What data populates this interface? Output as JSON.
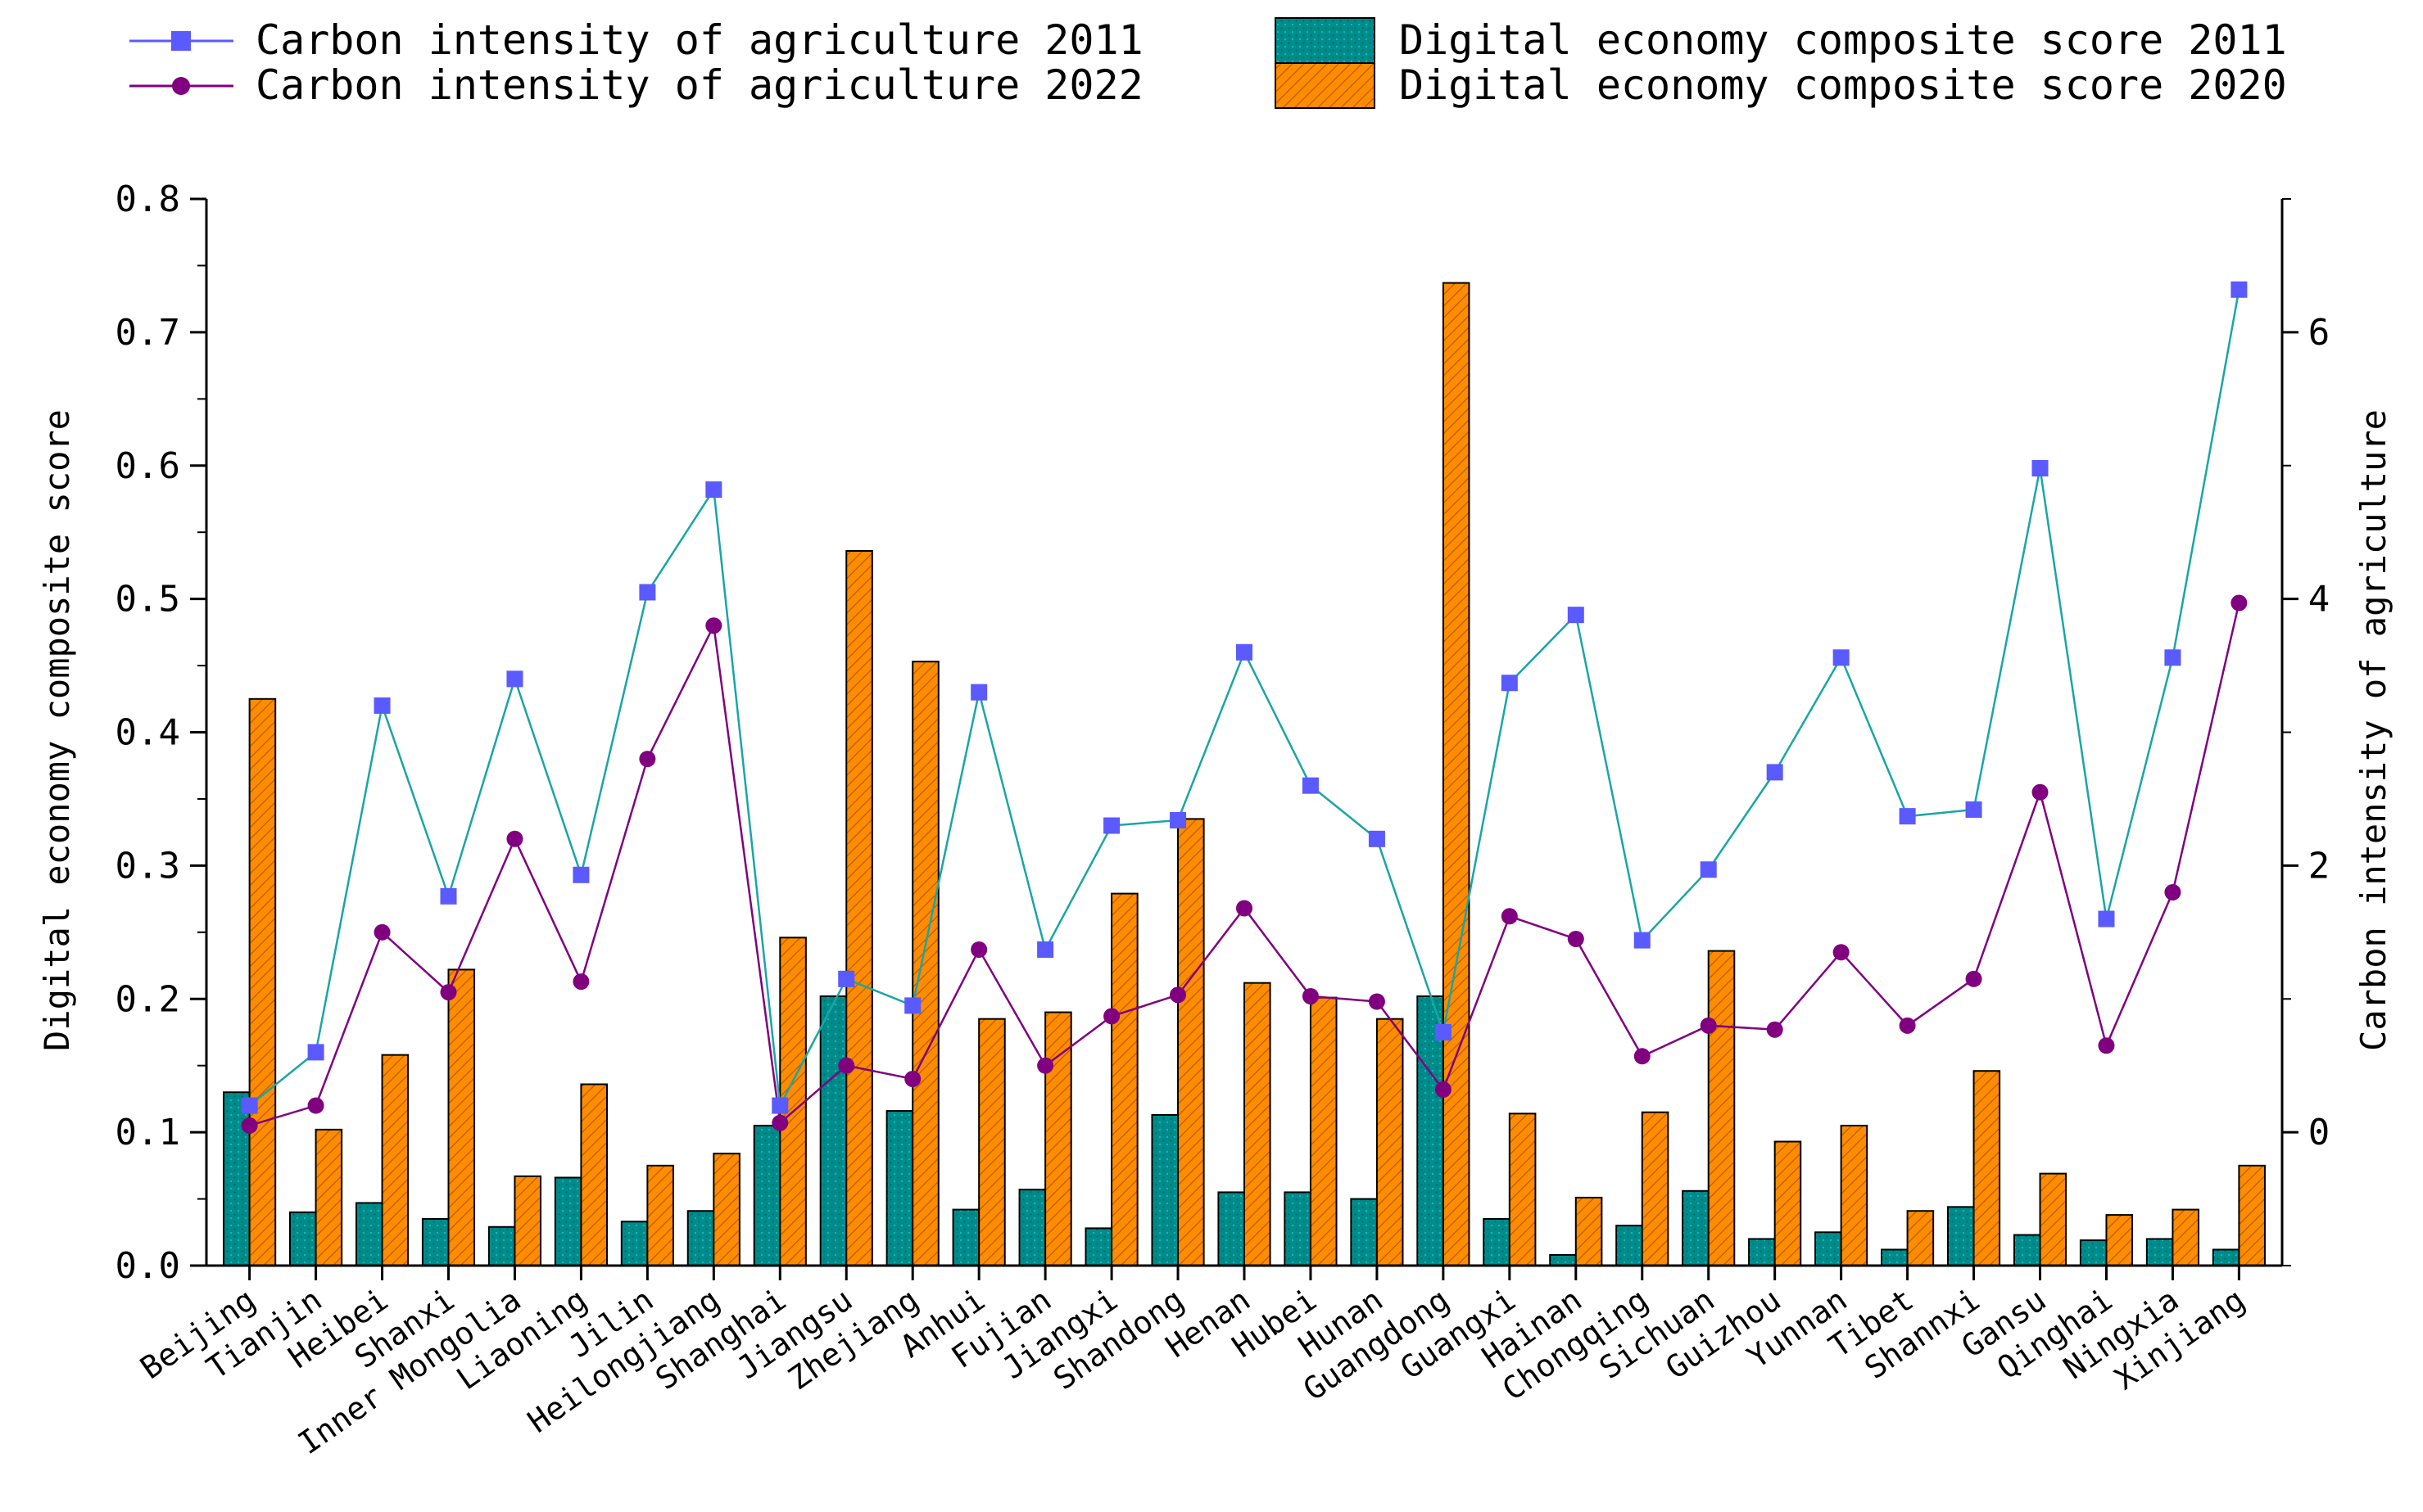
{
  "chart_data": {
    "type": "bar+line (dual axis)",
    "categories": [
      "Beijing",
      "Tianjin",
      "Heibei",
      "Shanxi",
      "Inner Mongolia",
      "Liaoning",
      "Jilin",
      "Heilongjiang",
      "Shanghai",
      "Jiangsu",
      "Zhejiang",
      "Anhui",
      "Fujian",
      "Jiangxi",
      "Shandong",
      "Henan",
      "Hubei",
      "Hunan",
      "Guangdong",
      "Guangxi",
      "Hainan",
      "Chongqing",
      "Sichuan",
      "Guizhou",
      "Yunnan",
      "Tibet",
      "Shannxi",
      "Gansu",
      "Qinghai",
      "Ningxia",
      "Xinjiang"
    ],
    "bar_series": [
      {
        "name": "Digital economy composite score 2011",
        "color": "#008b8b",
        "values": [
          0.13,
          0.04,
          0.047,
          0.035,
          0.029,
          0.066,
          0.033,
          0.041,
          0.105,
          0.202,
          0.116,
          0.042,
          0.057,
          0.028,
          0.113,
          0.055,
          0.055,
          0.05,
          0.202,
          0.035,
          0.008,
          0.03,
          0.056,
          0.02,
          0.025,
          0.012,
          0.044,
          0.023,
          0.019,
          0.02,
          0.012
        ]
      },
      {
        "name": "Digital economy composite score 2020",
        "color": "#ff8c00",
        "values": [
          0.425,
          0.102,
          0.158,
          0.222,
          0.067,
          0.136,
          0.075,
          0.084,
          0.246,
          0.536,
          0.453,
          0.185,
          0.19,
          0.279,
          0.335,
          0.212,
          0.201,
          0.185,
          0.737,
          0.114,
          0.051,
          0.115,
          0.236,
          0.093,
          0.105,
          0.041,
          0.146,
          0.069,
          0.038,
          0.042,
          0.075
        ]
      }
    ],
    "line_series": [
      {
        "name": "Carbon intensity of agriculture  2011",
        "color": "#5a5aff",
        "marker": "square",
        "values": [
          0.2,
          0.6,
          3.2,
          1.77,
          3.4,
          1.93,
          4.05,
          4.82,
          0.2,
          1.15,
          0.95,
          3.3,
          1.37,
          2.3,
          2.34,
          3.6,
          2.6,
          2.2,
          0.75,
          3.37,
          3.88,
          1.44,
          1.97,
          2.7,
          3.56,
          2.37,
          2.42,
          4.98,
          1.6,
          3.56,
          6.32
        ]
      },
      {
        "name": "Carbon intensity of agriculture  2022",
        "color": "#800080",
        "marker": "circle",
        "values": [
          0.05,
          0.2,
          1.5,
          1.05,
          2.2,
          1.13,
          2.8,
          3.8,
          0.07,
          0.5,
          0.4,
          1.37,
          0.5,
          0.87,
          1.03,
          1.68,
          1.02,
          0.98,
          0.32,
          1.62,
          1.45,
          0.57,
          0.8,
          0.77,
          1.35,
          0.8,
          1.15,
          2.55,
          0.65,
          1.8,
          3.97
        ]
      }
    ],
    "ylabel_left": "Digital economy composite score",
    "ylabel_right": "Carbon intensity of agriculture",
    "ylim_left": [
      0,
      0.8
    ],
    "ylim_right": [
      -1,
      7
    ],
    "yticks_left": [
      "0.0",
      "0.1",
      "0.2",
      "0.3",
      "0.4",
      "0.5",
      "0.6",
      "0.7",
      "0.8"
    ],
    "yticks_right": [
      "0",
      "2",
      "4",
      "6"
    ],
    "legend": [
      "Carbon intensity of agriculture  2011",
      "Carbon intensity of agriculture  2022",
      "Digital economy composite score  2011",
      "Digital economy composite score  2020"
    ]
  }
}
